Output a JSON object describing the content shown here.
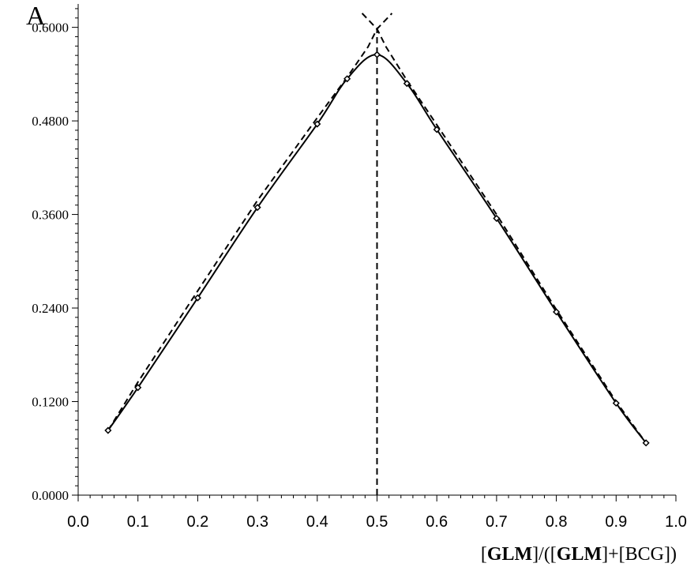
{
  "panel_label": "A",
  "chart_data": {
    "type": "line",
    "title": "",
    "xlabel": {
      "parts": [
        {
          "text": "[",
          "bold": false
        },
        {
          "text": "GLM",
          "bold": true
        },
        {
          "text": "]/([",
          "bold": false
        },
        {
          "text": "GLM",
          "bold": true
        },
        {
          "text": "]+[BCG])",
          "bold": false
        }
      ]
    },
    "ylabel": "",
    "xlim": [
      0.0,
      1.0
    ],
    "ylim": [
      0.0,
      0.63
    ],
    "x_ticks": [
      "0.0",
      "0.1",
      "0.2",
      "0.3",
      "0.4",
      "0.5",
      "0.6",
      "0.7",
      "0.8",
      "0.9",
      "1.0"
    ],
    "y_ticks": [
      "0.0000",
      "0.1200",
      "0.2400",
      "0.3600",
      "0.4800",
      "0.6000"
    ],
    "x_tick_values": [
      0.0,
      0.1,
      0.2,
      0.3,
      0.4,
      0.5,
      0.6,
      0.7,
      0.8,
      0.9,
      1.0
    ],
    "y_tick_values": [
      0.0,
      0.12,
      0.24,
      0.36,
      0.48,
      0.6
    ],
    "grid": false,
    "series": [
      {
        "style": "solid-markers",
        "x": [
          0.05,
          0.1,
          0.2,
          0.3,
          0.4,
          0.45,
          0.5,
          0.55,
          0.6,
          0.7,
          0.8,
          0.9,
          0.95
        ],
        "y": [
          0.083,
          0.138,
          0.253,
          0.369,
          0.476,
          0.534,
          0.565,
          0.528,
          0.469,
          0.355,
          0.235,
          0.118,
          0.067
        ]
      },
      {
        "style": "dashed",
        "x": [
          0.05,
          0.1,
          0.2,
          0.3,
          0.4,
          0.45,
          0.485,
          0.5,
          0.515,
          0.55,
          0.6,
          0.7,
          0.8,
          0.9,
          0.95
        ],
        "y": [
          0.083,
          0.145,
          0.262,
          0.378,
          0.484,
          0.536,
          0.575,
          0.598,
          0.575,
          0.532,
          0.475,
          0.36,
          0.238,
          0.12,
          0.067
        ]
      },
      {
        "style": "dashed-extension",
        "x": [
          0.475,
          0.5,
          0.525
        ],
        "y": [
          0.618,
          0.598,
          0.618
        ]
      },
      {
        "style": "dashed-vertical",
        "x": [
          0.5,
          0.5
        ],
        "y": [
          0.0,
          0.598
        ]
      }
    ]
  }
}
